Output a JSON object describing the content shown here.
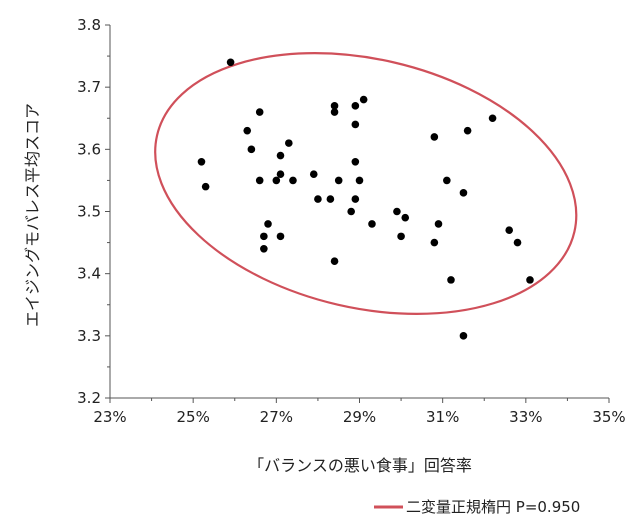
{
  "chart_data": {
    "type": "scatter",
    "xlabel": "「バランスの悪い食事」回答率",
    "ylabel": "エイジングモバレス平均スコア",
    "xlim": [
      0.23,
      0.35
    ],
    "ylim": [
      3.2,
      3.8
    ],
    "x_ticks": [
      "23%",
      "25%",
      "27%",
      "29%",
      "31%",
      "33%",
      "35%"
    ],
    "y_ticks": [
      "3.2",
      "3.3",
      "3.4",
      "3.5",
      "3.6",
      "3.7",
      "3.8"
    ],
    "grid": false,
    "legend_position": "bottom-right",
    "legend_entry": "二変量正規楕円 P=0.950",
    "ellipse_color": "#d0505a",
    "point_color": "#000000",
    "ellipse": {
      "cx": 0.2915,
      "cy": 3.545,
      "rx": 0.0515,
      "ry": 0.2,
      "rotation_deg": 13
    },
    "points": [
      {
        "x": 0.252,
        "y": 3.58
      },
      {
        "x": 0.253,
        "y": 3.54
      },
      {
        "x": 0.259,
        "y": 3.74
      },
      {
        "x": 0.263,
        "y": 3.63
      },
      {
        "x": 0.264,
        "y": 3.6
      },
      {
        "x": 0.266,
        "y": 3.66
      },
      {
        "x": 0.266,
        "y": 3.55
      },
      {
        "x": 0.267,
        "y": 3.46
      },
      {
        "x": 0.267,
        "y": 3.44
      },
      {
        "x": 0.268,
        "y": 3.48
      },
      {
        "x": 0.27,
        "y": 3.55
      },
      {
        "x": 0.271,
        "y": 3.56
      },
      {
        "x": 0.271,
        "y": 3.59
      },
      {
        "x": 0.271,
        "y": 3.46
      },
      {
        "x": 0.273,
        "y": 3.61
      },
      {
        "x": 0.274,
        "y": 3.55
      },
      {
        "x": 0.279,
        "y": 3.56
      },
      {
        "x": 0.28,
        "y": 3.52
      },
      {
        "x": 0.283,
        "y": 3.52
      },
      {
        "x": 0.284,
        "y": 3.67
      },
      {
        "x": 0.284,
        "y": 3.66
      },
      {
        "x": 0.284,
        "y": 3.42
      },
      {
        "x": 0.285,
        "y": 3.55
      },
      {
        "x": 0.288,
        "y": 3.5
      },
      {
        "x": 0.289,
        "y": 3.67
      },
      {
        "x": 0.289,
        "y": 3.64
      },
      {
        "x": 0.289,
        "y": 3.58
      },
      {
        "x": 0.289,
        "y": 3.52
      },
      {
        "x": 0.29,
        "y": 3.55
      },
      {
        "x": 0.291,
        "y": 3.68
      },
      {
        "x": 0.293,
        "y": 3.48
      },
      {
        "x": 0.299,
        "y": 3.5
      },
      {
        "x": 0.3,
        "y": 3.46
      },
      {
        "x": 0.301,
        "y": 3.49
      },
      {
        "x": 0.308,
        "y": 3.62
      },
      {
        "x": 0.308,
        "y": 3.45
      },
      {
        "x": 0.309,
        "y": 3.48
      },
      {
        "x": 0.311,
        "y": 3.55
      },
      {
        "x": 0.312,
        "y": 3.39
      },
      {
        "x": 0.315,
        "y": 3.53
      },
      {
        "x": 0.315,
        "y": 3.3
      },
      {
        "x": 0.316,
        "y": 3.63
      },
      {
        "x": 0.322,
        "y": 3.65
      },
      {
        "x": 0.326,
        "y": 3.47
      },
      {
        "x": 0.328,
        "y": 3.45
      },
      {
        "x": 0.331,
        "y": 3.39
      }
    ]
  }
}
